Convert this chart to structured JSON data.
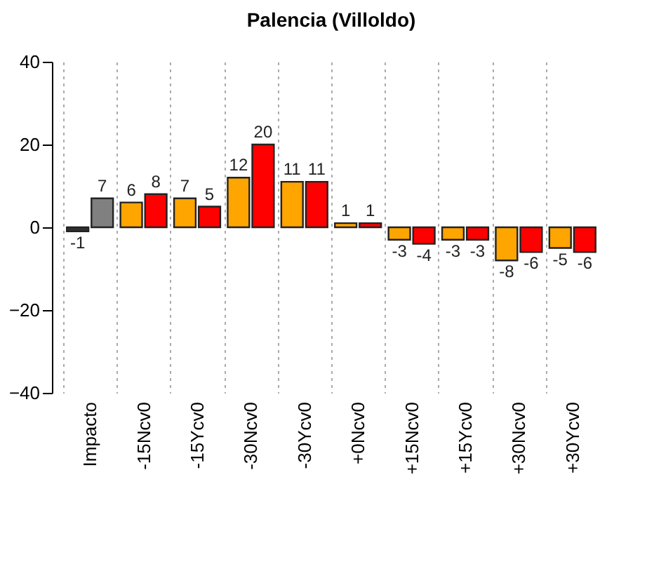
{
  "chart_data": {
    "type": "bar",
    "title": "Palencia (Villoldo)",
    "categories": [
      "Impacto",
      "-15Ncv0",
      "-15Ycv0",
      "-30Ncv0",
      "-30Ycv0",
      "+0Ncv0",
      "+15Ncv0",
      "+15Ycv0",
      "+30Ncv0",
      "+30Ycv0"
    ],
    "series": [
      {
        "colors": [
          "#303030",
          "#ffa500",
          "#ffa500",
          "#ffa500",
          "#ffa500",
          "#ffa500",
          "#ffa500",
          "#ffa500",
          "#ffa500",
          "#ffa500"
        ],
        "values": [
          -1,
          6,
          7,
          12,
          11,
          1,
          -3,
          -3,
          -8,
          -5
        ]
      },
      {
        "colors": [
          "#808080",
          "#ff0000",
          "#ff0000",
          "#ff0000",
          "#ff0000",
          "#ff0000",
          "#ff0000",
          "#ff0000",
          "#ff0000",
          "#ff0000"
        ],
        "values": [
          7,
          8,
          5,
          20,
          11,
          1,
          -4,
          -3,
          -6,
          -6
        ]
      }
    ],
    "ylim": [
      -40,
      40
    ],
    "yticks": [
      -40,
      -20,
      0,
      20,
      40
    ],
    "grid": "x",
    "data_labels": true
  }
}
